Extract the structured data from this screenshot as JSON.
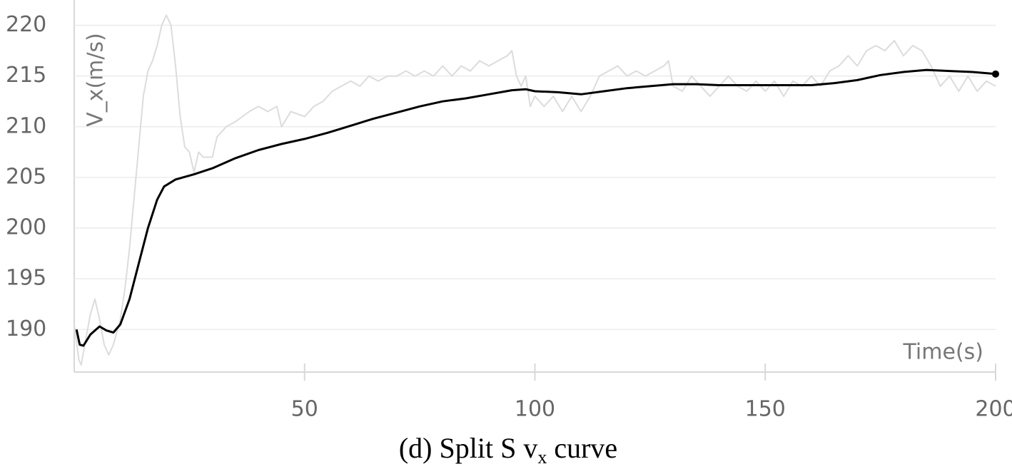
{
  "chart_data": {
    "type": "line",
    "ylabel": "V_x(m/s)",
    "xlabel": "Time(s)",
    "caption": [
      "(d) Split S v",
      "x",
      " curve"
    ],
    "xlim": [
      0,
      200
    ],
    "xticks": [
      50,
      100,
      150,
      200
    ],
    "ylim": [
      185.8,
      222.5
    ],
    "yticks": [
      190,
      195,
      200,
      205,
      210,
      215,
      220
    ],
    "grid": true,
    "series": [
      {
        "color": "#dcdcdc",
        "x": [
          0,
          1,
          1.5,
          2.5,
          3.5,
          4.5,
          5.5,
          6.5,
          7.5,
          8.5,
          10,
          11,
          12,
          13,
          14,
          15,
          16,
          17,
          18,
          19,
          20,
          21,
          22,
          23,
          24,
          25,
          26,
          27,
          28,
          30,
          31,
          33,
          35,
          38,
          40,
          42,
          44,
          45,
          47,
          50,
          52,
          54,
          56,
          58,
          60,
          62,
          64,
          66,
          68,
          70,
          72,
          74,
          76,
          78,
          80,
          82,
          84,
          86,
          88,
          90,
          92,
          94,
          95,
          96,
          97,
          98,
          99,
          100,
          102,
          104,
          106,
          108,
          110,
          112,
          114,
          116,
          118,
          120,
          122,
          124,
          126,
          128,
          129,
          130,
          132,
          134,
          136,
          138,
          140,
          142,
          144,
          146,
          148,
          150,
          152,
          154,
          156,
          158,
          160,
          162,
          164,
          166,
          168,
          170,
          172,
          174,
          176,
          178,
          180,
          182,
          184,
          186,
          188,
          190,
          192,
          194,
          196,
          198,
          200
        ],
        "values": [
          190.5,
          187,
          186.5,
          189,
          191.5,
          193,
          191,
          188.5,
          187.5,
          188.5,
          191,
          194,
          198,
          203,
          208,
          213,
          215.5,
          216.5,
          218,
          220,
          221,
          220,
          216,
          211,
          208,
          207.5,
          205.5,
          207.5,
          207,
          207,
          209,
          210,
          210.5,
          211.5,
          212,
          211.5,
          212,
          210,
          211.5,
          211,
          212,
          212.5,
          213.5,
          214,
          214.5,
          214,
          215,
          214.5,
          215,
          215,
          215.5,
          215,
          215.5,
          215,
          216,
          215,
          216,
          215.5,
          216.5,
          216,
          216.5,
          217,
          217.5,
          215,
          214,
          215,
          212,
          213,
          212,
          213,
          211.5,
          213,
          211.5,
          213,
          215,
          215.5,
          216,
          215,
          215.5,
          215,
          215.5,
          216,
          216.5,
          214,
          213.5,
          215,
          214,
          213,
          214,
          215,
          214,
          213.5,
          214.5,
          213.5,
          214.5,
          213,
          214.5,
          214,
          215,
          214,
          215.5,
          216,
          217,
          216,
          217.5,
          218,
          217.5,
          218.5,
          217,
          218,
          217.5,
          216,
          214,
          215,
          213.5,
          215,
          213.5,
          214.5,
          214
        ]
      },
      {
        "color": "#000000",
        "x": [
          0.5,
          1.2,
          2,
          3.5,
          5.5,
          7,
          8.5,
          10,
          12,
          14,
          16,
          18,
          19.5,
          22,
          26,
          30,
          35,
          40,
          45,
          50,
          55,
          60,
          65,
          70,
          75,
          80,
          85,
          90,
          95,
          98,
          100,
          105,
          110,
          115,
          120,
          125,
          130,
          135,
          140,
          150,
          160,
          165,
          170,
          175,
          180,
          185,
          190,
          195,
          200
        ],
        "values": [
          190,
          188.5,
          188.4,
          189.5,
          190.3,
          189.9,
          189.7,
          190.5,
          193,
          196.5,
          200,
          202.8,
          204.1,
          204.8,
          205.3,
          205.9,
          206.9,
          207.7,
          208.3,
          208.8,
          209.4,
          210.1,
          210.8,
          211.4,
          212,
          212.5,
          212.8,
          213.2,
          213.6,
          213.7,
          213.5,
          213.4,
          213.2,
          213.5,
          213.8,
          214,
          214.2,
          214.2,
          214.1,
          214.1,
          214.1,
          214.3,
          214.6,
          215.1,
          215.4,
          215.6,
          215.5,
          215.4,
          215.2
        ]
      }
    ]
  }
}
